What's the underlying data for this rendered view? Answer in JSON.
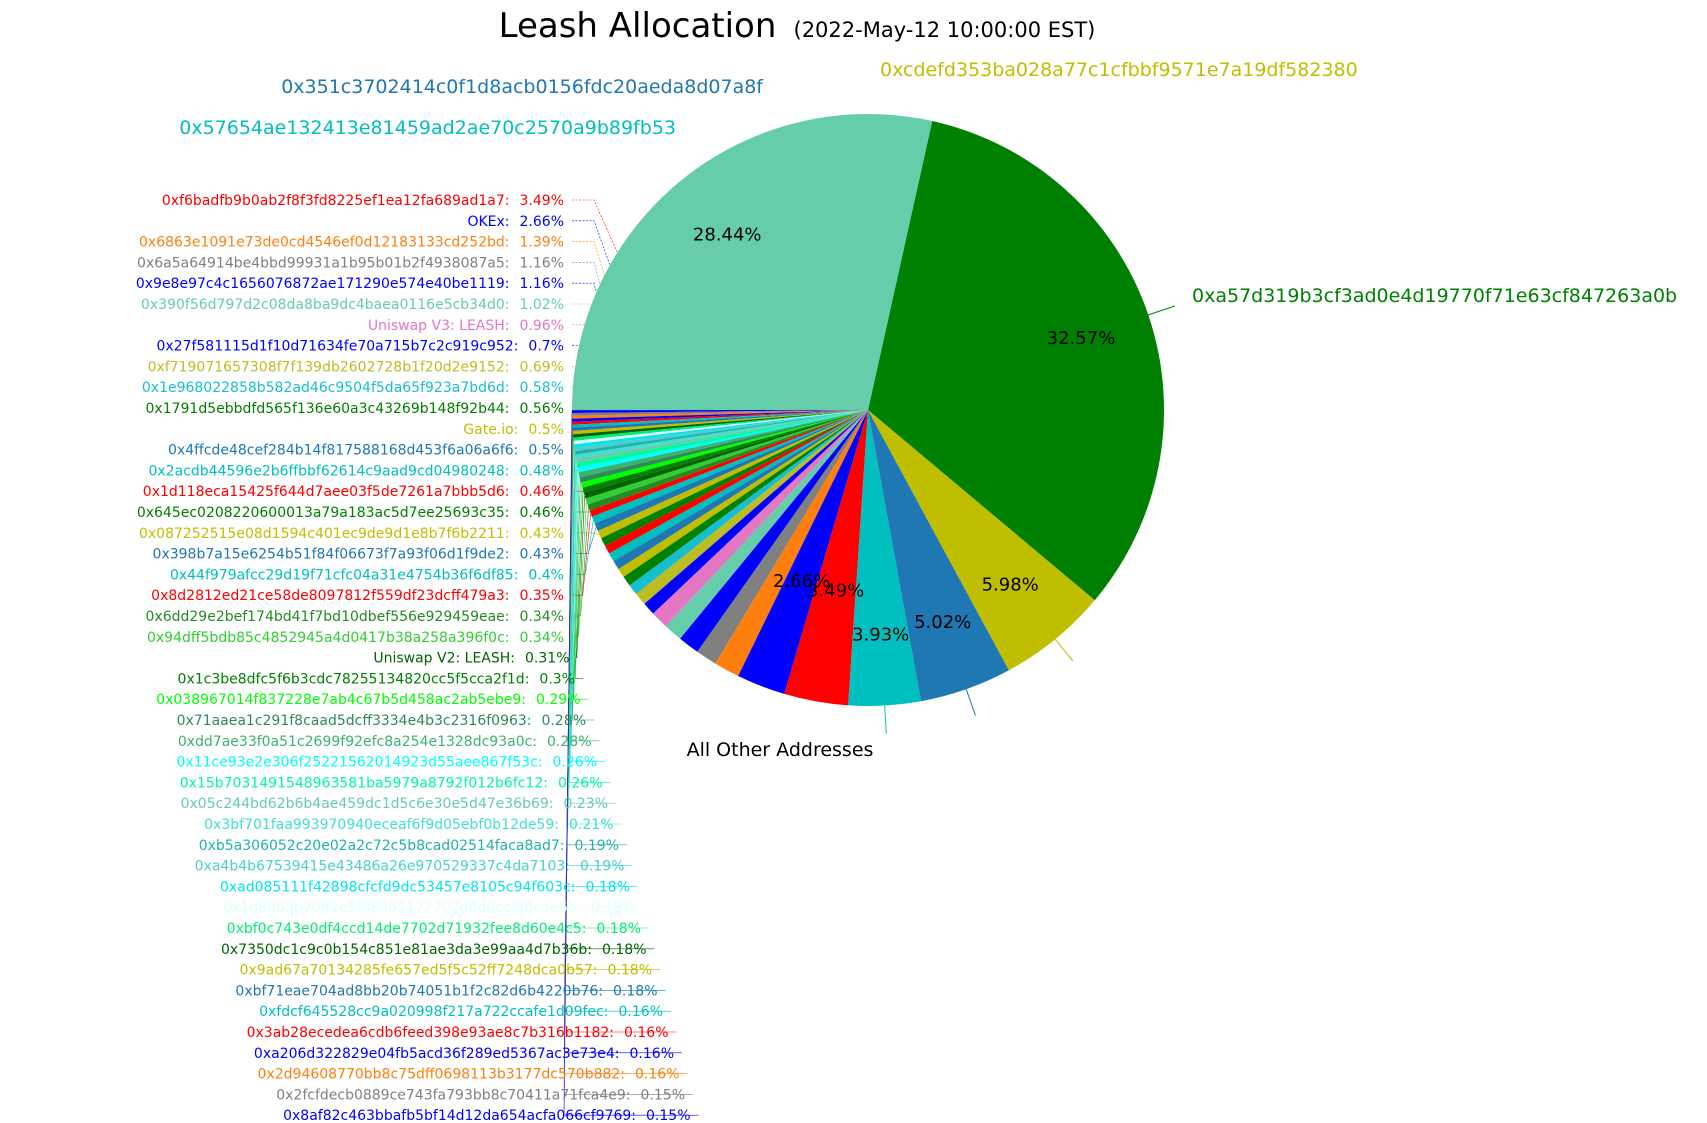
{
  "chart_data": {
    "type": "pie",
    "title": "Leash Allocation",
    "subtitle": "(2022-May-12 10:00:00 EST)",
    "big_slices": [
      {
        "name": "0xa57d319b3cf3ad0e4d19770f71e63cf847263a0b",
        "value": 32.57,
        "pct_label": "32.57%",
        "color": "#008000"
      },
      {
        "name": "All Other Addresses",
        "value": 28.44,
        "pct_label": "28.44%",
        "color": "#66cdaa"
      },
      {
        "name": "0xcdefd353ba028a77c1cfbbf9571e7a19df582380",
        "value": 5.98,
        "pct_label": "5.98%",
        "color": "#bfbf00"
      },
      {
        "name": "0x351c3702414c0f1d8acb0156fdc20aeda8d07a8f",
        "value": 5.02,
        "pct_label": "5.02%",
        "color": "#1f77b4"
      },
      {
        "name": "0x57654ae132413e81459ad2ae70c2570a9b89fb53",
        "value": 3.93,
        "pct_label": "3.93%",
        "color": "#00bfbf"
      }
    ],
    "small_slices": [
      {
        "name": "0xf6badfb9b0ab2f8f3fd8225ef1ea12fa689ad1a7:",
        "value": 3.49,
        "pct": "3.49%",
        "pct_label": "3.49%",
        "color": "#ff0000"
      },
      {
        "name": "OKEx:",
        "value": 2.66,
        "pct": "2.66%",
        "pct_label": "2.66%",
        "color": "#0000ff"
      },
      {
        "name": "0x6863e1091e73de0cd4546ef0d12183133cd252bd:",
        "value": 1.39,
        "pct": "1.39%",
        "color": "#ff7f0e"
      },
      {
        "name": "0x6a5a64914be4bbd99931a1b95b01b2f4938087a5:",
        "value": 1.16,
        "pct": "1.16%",
        "color": "#808080"
      },
      {
        "name": "0x9e8e97c4c1656076872ae171290e574e40be1119:",
        "value": 1.16,
        "pct": "1.16%",
        "color": "#0000ff"
      },
      {
        "name": "0x390f56d797d2c08da8ba9dc4baea0116e5cb34d0:",
        "value": 1.02,
        "pct": "1.02%",
        "color": "#66cdaa"
      },
      {
        "name": "Uniswap V3: LEASH:",
        "value": 0.96,
        "pct": "0.96%",
        "color": "#e377c2"
      },
      {
        "name": "0x27f581115d1f10d71634fe70a715b7c2c919c952:",
        "value": 0.7,
        "pct": "0.7%",
        "color": "#0000ff"
      },
      {
        "name": "0xf719071657308f7f139db2602728b1f20d2e9152:",
        "value": 0.69,
        "pct": "0.69%",
        "color": "#bcbd22"
      },
      {
        "name": "0x1e968022858b582ad46c9504f5da65f923a7bd6d:",
        "value": 0.58,
        "pct": "0.58%",
        "color": "#17becf"
      },
      {
        "name": "0x1791d5ebbdfd565f136e60a3c43269b148f92b44:",
        "value": 0.56,
        "pct": "0.56%",
        "color": "#008000"
      },
      {
        "name": "Gate.io:",
        "value": 0.5,
        "pct": "0.5%",
        "color": "#bfbf00"
      },
      {
        "name": "0x4ffcde48cef284b14f817588168d453f6a06a6f6:",
        "value": 0.5,
        "pct": "0.5%",
        "color": "#1f77b4"
      },
      {
        "name": "0x2acdb44596e2b6ffbbf62614c9aad9cd04980248:",
        "value": 0.48,
        "pct": "0.48%",
        "color": "#00bfbf"
      },
      {
        "name": "0x1d118eca15425f644d7aee03f5de7261a7bbb5d6:",
        "value": 0.46,
        "pct": "0.46%",
        "color": "#ff0000"
      },
      {
        "name": "0x645ec0208220600013a79a183ac5d7ee25693c35:",
        "value": 0.46,
        "pct": "0.46%",
        "color": "#008000"
      },
      {
        "name": "0x087252515e08d1594c401ec9de9d1e8b7f6b2211:",
        "value": 0.43,
        "pct": "0.43%",
        "color": "#bfbf00"
      },
      {
        "name": "0x398b7a15e6254b51f84f06673f7a93f06d1f9de2:",
        "value": 0.43,
        "pct": "0.43%",
        "color": "#1f77b4"
      },
      {
        "name": "0x44f979afcc29d19f71cfc04a31e4754b36f6df85:",
        "value": 0.4,
        "pct": "0.4%",
        "color": "#00bfbf"
      },
      {
        "name": "0x8d2812ed21ce58de8097812f559df23dcff479a3:",
        "value": 0.35,
        "pct": "0.35%",
        "color": "#ff0000"
      },
      {
        "name": "0x6dd29e2bef174bd41f7bd10dbef556e929459eae:",
        "value": 0.34,
        "pct": "0.34%",
        "color": "#228b22"
      },
      {
        "name": "0x94dff5bdb85c4852945a4d0417b38a258a396f0c:",
        "value": 0.34,
        "pct": "0.34%",
        "color": "#32cd32"
      },
      {
        "name": "Uniswap V2: LEASH:",
        "value": 0.31,
        "pct": "0.31%",
        "color": "#006400"
      },
      {
        "name": "0x1c3be8dfc5f6b3cdc78255134820cc5f5cca2f1d:",
        "value": 0.3,
        "pct": "0.3%",
        "color": "#008000"
      },
      {
        "name": "0x038967014f837228e7ab4c67b5d458ac2ab5ebe9:",
        "value": 0.29,
        "pct": "0.29%",
        "color": "#00ff00"
      },
      {
        "name": "0x71aaea1c291f8caad5dcff3334e4b3c2316f0963:",
        "value": 0.28,
        "pct": "0.28%",
        "color": "#2e8b57"
      },
      {
        "name": "0xdd7ae33f0a51c2699f92efc8a254e1328dc93a0c:",
        "value": 0.28,
        "pct": "0.28%",
        "color": "#3cb371"
      },
      {
        "name": "0x11ce93e2e306f25221562014923d55aee867f53c:",
        "value": 0.26,
        "pct": "0.26%",
        "color": "#00ffff"
      },
      {
        "name": "0x15b7031491548963581ba5979a8792f012b6fc12:",
        "value": 0.26,
        "pct": "0.26%",
        "color": "#00fa9a"
      },
      {
        "name": "0x05c244bd62b6b4ae459dc1d5c6e30e5d47e36b69:",
        "value": 0.23,
        "pct": "0.23%",
        "color": "#66cdaa"
      },
      {
        "name": "0x3bf701faa993970940eceaf6f9d05ebf0b12de59:",
        "value": 0.21,
        "pct": "0.21%",
        "color": "#40e0d0"
      },
      {
        "name": "0xb5a306052c20e02a2c72c5b8cad02514faca8ad7:",
        "value": 0.19,
        "pct": "0.19%",
        "color": "#20b2aa"
      },
      {
        "name": "0xa4b4b67539415e43486a26e970529337c4da7103:",
        "value": 0.19,
        "pct": "0.19%",
        "color": "#48d1cc"
      },
      {
        "name": "0xad085111f42898cfcfd9dc53457e8105c94f603c:",
        "value": 0.18,
        "pct": "0.18%",
        "color": "#00e5ee"
      },
      {
        "name": "0x1d8853b70ff1e5f08361177707d8d0cc7f8c5e6b:",
        "value": 0.18,
        "pct": "0.18%",
        "color": "#e0ffff"
      },
      {
        "name": "0xbf0c743e0df4ccd14de7702d71932fee8d60e4c5:",
        "value": 0.18,
        "pct": "0.18%",
        "color": "#00ee76"
      },
      {
        "name": "0x7350dc1c9c0b154c851e81ae3da3e99aa4d7b36b:",
        "value": 0.18,
        "pct": "0.18%",
        "color": "#006400"
      },
      {
        "name": "0x9ad67a70134285fe657ed5f5c52ff7248dca0b57:",
        "value": 0.18,
        "pct": "0.18%",
        "color": "#bfbf00"
      },
      {
        "name": "0xbf71eae704ad8bb20b74051b1f2c82d6b4220b76:",
        "value": 0.18,
        "pct": "0.18%",
        "color": "#1f77b4"
      },
      {
        "name": "0xfdcf645528cc9a020998f217a722ccafe1d09fec:",
        "value": 0.16,
        "pct": "0.16%",
        "color": "#00bfbf"
      },
      {
        "name": "0x3ab28ecedea6cdb6feed398e93ae8c7b316b1182:",
        "value": 0.16,
        "pct": "0.16%",
        "color": "#ff0000"
      },
      {
        "name": "0xa206d322829e04fb5acd36f289ed5367ac3e73e4:",
        "value": 0.16,
        "pct": "0.16%",
        "color": "#0000ff"
      },
      {
        "name": "0x2d94608770bb8c75dff0698113b3177dc570b882:",
        "value": 0.16,
        "pct": "0.16%",
        "color": "#ff7f0e"
      },
      {
        "name": "0x2fcfdecb0889ce743fa793bb8c70411a71fca4e9:",
        "value": 0.15,
        "pct": "0.15%",
        "color": "#808080"
      },
      {
        "name": "0x8af82c463bbafb5bf14d12da654acfa066cf9769:",
        "value": 0.15,
        "pct": "0.15%",
        "color": "#0000ff"
      }
    ]
  }
}
